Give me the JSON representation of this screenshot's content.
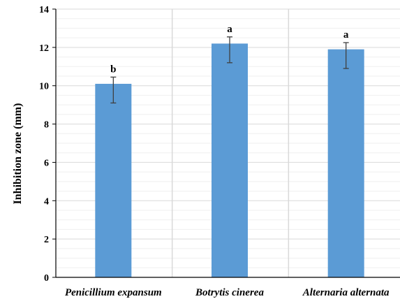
{
  "chart_data": {
    "type": "bar",
    "title": "",
    "xlabel": "",
    "ylabel": "Inhibition  zone (mm)",
    "ylim": [
      0,
      14
    ],
    "yticks": [
      0,
      2,
      4,
      6,
      8,
      10,
      12,
      14
    ],
    "y_gridlines": true,
    "x_separators": true,
    "categories": [
      "Penicillium expansum",
      "Botrytis cinerea",
      "Alternaria alternata"
    ],
    "series": [
      {
        "values": [
          10.1,
          12.2,
          11.9
        ],
        "error": [
          1.0,
          1.0,
          1.0
        ],
        "letters": [
          "b",
          "a",
          "a"
        ],
        "color": "#5b9bd5"
      }
    ],
    "colors": {
      "bar": "#5b9bd5",
      "error_bar": "#404040",
      "major_grid": "#d9d9d9",
      "minor_grid": "#efefef",
      "axis": "#000000"
    }
  }
}
